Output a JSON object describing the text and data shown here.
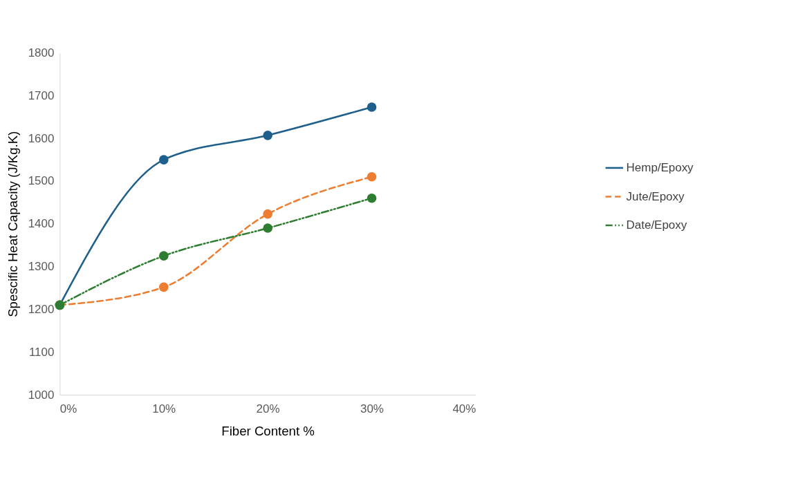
{
  "chart_data": {
    "type": "line",
    "xlabel": "Fiber Content %",
    "ylabel": "Spescific Heat Capacity (J/Kg.K)",
    "x": [
      0,
      10,
      20,
      30
    ],
    "xlim": [
      0,
      40
    ],
    "xticks": [
      {
        "value": 0,
        "label": "0%"
      },
      {
        "value": 10,
        "label": "10%"
      },
      {
        "value": 20,
        "label": "20%"
      },
      {
        "value": 30,
        "label": "30%"
      },
      {
        "value": 40,
        "label": "40%"
      }
    ],
    "ylim": [
      1000,
      1800
    ],
    "yticks": [
      1000,
      1100,
      1200,
      1300,
      1400,
      1500,
      1600,
      1700,
      1800
    ],
    "series": [
      {
        "name": "Hemp/Epoxy",
        "color": "#1f5f8b",
        "values": [
          1210,
          1550,
          1607,
          1673
        ],
        "line_style": "solid"
      },
      {
        "name": "Jute/Epoxy",
        "color": "#ed7d31",
        "values": [
          1210,
          1252,
          1423,
          1510
        ],
        "line_style": "dashed"
      },
      {
        "name": "Date/Epoxy",
        "color": "#2e7d32",
        "values": [
          1210,
          1325,
          1390,
          1460
        ],
        "line_style": "dotted"
      }
    ],
    "marker": "circle",
    "grid": false,
    "legend": "right"
  }
}
